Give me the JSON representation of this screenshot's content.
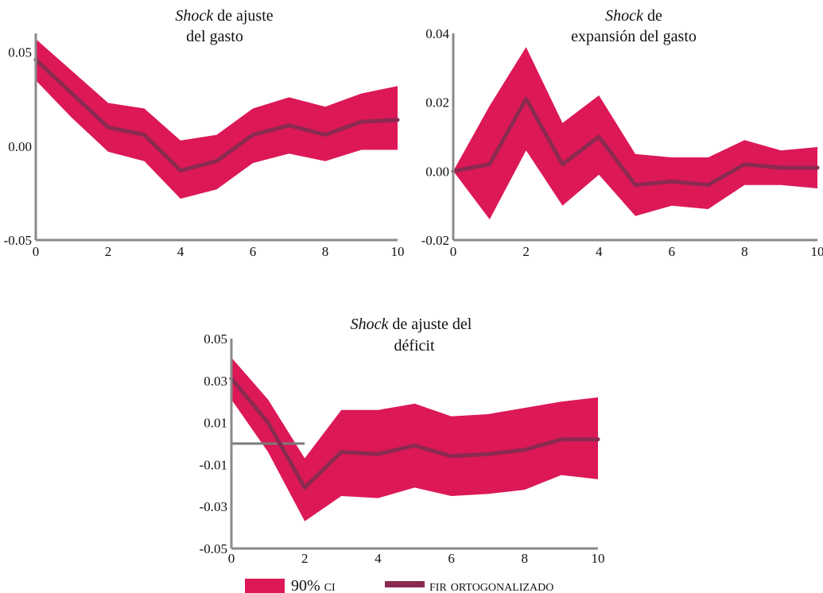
{
  "chart_data": [
    {
      "type": "line",
      "title_italic": "Shock",
      "title_rest_line1": " de ajuste",
      "title_line2": "del gasto",
      "x": [
        0,
        1,
        2,
        3,
        4,
        5,
        6,
        7,
        8,
        9,
        10
      ],
      "xticks": [
        0,
        2,
        4,
        6,
        8,
        10
      ],
      "xtick_labels": [
        "0",
        "2",
        "4",
        "6",
        "8",
        "10"
      ],
      "ylim": [
        -0.05,
        0.06
      ],
      "yticks": [
        0.05,
        0.0,
        -0.05
      ],
      "ytick_labels": [
        "0.05",
        "0.00",
        "-0.05"
      ],
      "series": [
        {
          "name": "fir ortogonalizado",
          "values": [
            0.046,
            0.028,
            0.01,
            0.006,
            -0.013,
            -0.008,
            0.006,
            0.011,
            0.006,
            0.013,
            0.014
          ]
        },
        {
          "name": "90% ci upper",
          "values": [
            0.057,
            0.04,
            0.023,
            0.02,
            0.003,
            0.006,
            0.02,
            0.026,
            0.021,
            0.028,
            0.032
          ]
        },
        {
          "name": "90% ci lower",
          "values": [
            0.035,
            0.015,
            -0.003,
            -0.008,
            -0.028,
            -0.023,
            -0.009,
            -0.004,
            -0.008,
            -0.002,
            -0.002
          ]
        }
      ]
    },
    {
      "type": "line",
      "title_italic": "Shock",
      "title_rest_line1": " de",
      "title_line2": "expansión del gasto",
      "x": [
        0,
        1,
        2,
        3,
        4,
        5,
        6,
        7,
        8,
        9,
        10
      ],
      "xticks": [
        0,
        2,
        4,
        6,
        8,
        10
      ],
      "xtick_labels": [
        "0",
        "2",
        "4",
        "6",
        "8",
        "10"
      ],
      "ylim": [
        -0.02,
        0.04
      ],
      "yticks": [
        0.04,
        0.02,
        0.0,
        -0.02
      ],
      "ytick_labels": [
        "0.04",
        "0.02",
        "0.00",
        "-0.02"
      ],
      "series": [
        {
          "name": "fir ortogonalizado",
          "values": [
            0.0,
            0.002,
            0.021,
            0.002,
            0.01,
            -0.004,
            -0.003,
            -0.004,
            0.002,
            0.001,
            0.001
          ]
        },
        {
          "name": "90% ci upper",
          "values": [
            0.0,
            0.019,
            0.036,
            0.014,
            0.022,
            0.005,
            0.004,
            0.004,
            0.009,
            0.006,
            0.007
          ]
        },
        {
          "name": "90% ci lower",
          "values": [
            0.0,
            -0.014,
            0.006,
            -0.01,
            -0.001,
            -0.013,
            -0.01,
            -0.011,
            -0.004,
            -0.004,
            -0.005
          ]
        }
      ]
    },
    {
      "type": "line",
      "title_italic": "Shock",
      "title_rest_line1": " de ajuste del",
      "title_line2": "déficit",
      "x": [
        0,
        1,
        2,
        3,
        4,
        5,
        6,
        7,
        8,
        9,
        10
      ],
      "xticks": [
        0,
        2,
        4,
        6,
        8,
        10
      ],
      "xtick_labels": [
        "0",
        "2",
        "4",
        "6",
        "8",
        "10"
      ],
      "ylim": [
        -0.05,
        0.05
      ],
      "yticks": [
        0.05,
        0.03,
        0.01,
        -0.01,
        -0.03,
        -0.05
      ],
      "ytick_labels": [
        "0.05",
        "0.03",
        "0.01",
        "-0.01",
        "-0.03",
        "-0.05"
      ],
      "zero_line": 0.0,
      "series": [
        {
          "name": "fir ortogonalizado",
          "values": [
            0.031,
            0.01,
            -0.021,
            -0.004,
            -0.005,
            -0.001,
            -0.006,
            -0.005,
            -0.003,
            0.002,
            0.002
          ]
        },
        {
          "name": "90% ci upper",
          "values": [
            0.041,
            0.021,
            -0.007,
            0.016,
            0.016,
            0.019,
            0.013,
            0.014,
            0.017,
            0.02,
            0.022
          ]
        },
        {
          "name": "90% ci lower",
          "values": [
            0.021,
            -0.004,
            -0.037,
            -0.025,
            -0.026,
            -0.021,
            -0.025,
            -0.024,
            -0.022,
            -0.015,
            -0.017
          ]
        }
      ]
    }
  ],
  "legend": [
    {
      "label": "90% ci",
      "kind": "band"
    },
    {
      "label": "fir ortogonalizado",
      "kind": "line"
    }
  ],
  "colors": {
    "band": "#dc1857",
    "line": "#8b2a50",
    "axis": "#8a8a8a",
    "zero": "#7a7a7a"
  }
}
